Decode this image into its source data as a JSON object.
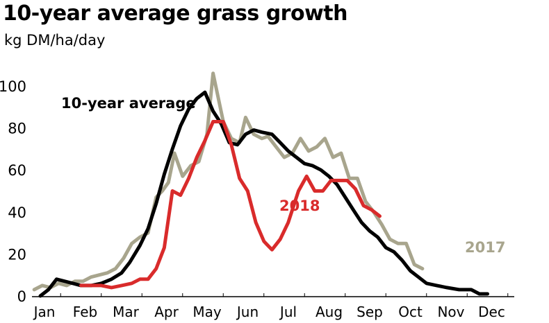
{
  "chart_data": {
    "type": "line",
    "title": "10-year average grass growth",
    "subtitle": "kg DM/ha/day",
    "xlabel": "",
    "ylabel": "",
    "months": [
      "Jan",
      "Feb",
      "Mar",
      "Apr",
      "May",
      "Jun",
      "Jul",
      "Aug",
      "Sep",
      "Oct",
      "Nov",
      "Dec"
    ],
    "xlim": [
      0,
      12
    ],
    "ylim": [
      0,
      110
    ],
    "yticks": [
      0,
      20,
      40,
      60,
      80,
      100
    ],
    "grid": false,
    "series": [
      {
        "name": "10-year average",
        "color": "#000000",
        "points": [
          [
            0.0,
            0
          ],
          [
            0.2,
            3
          ],
          [
            0.4,
            8
          ],
          [
            0.6,
            7
          ],
          [
            0.8,
            6
          ],
          [
            1.0,
            5
          ],
          [
            1.25,
            5
          ],
          [
            1.5,
            6
          ],
          [
            1.75,
            8
          ],
          [
            2.0,
            11
          ],
          [
            2.2,
            16
          ],
          [
            2.45,
            24
          ],
          [
            2.65,
            32
          ],
          [
            2.85,
            44
          ],
          [
            3.05,
            58
          ],
          [
            3.25,
            70
          ],
          [
            3.45,
            81
          ],
          [
            3.65,
            89
          ],
          [
            3.85,
            94
          ],
          [
            4.05,
            97
          ],
          [
            4.25,
            88
          ],
          [
            4.45,
            82
          ],
          [
            4.65,
            73
          ],
          [
            4.85,
            72
          ],
          [
            5.05,
            77
          ],
          [
            5.25,
            79
          ],
          [
            5.45,
            78
          ],
          [
            5.7,
            77
          ],
          [
            5.9,
            73
          ],
          [
            6.1,
            69
          ],
          [
            6.3,
            66
          ],
          [
            6.5,
            63
          ],
          [
            6.7,
            62
          ],
          [
            6.9,
            60
          ],
          [
            7.1,
            57
          ],
          [
            7.3,
            53
          ],
          [
            7.5,
            47
          ],
          [
            7.7,
            41
          ],
          [
            7.9,
            35
          ],
          [
            8.1,
            31
          ],
          [
            8.3,
            28
          ],
          [
            8.5,
            23
          ],
          [
            8.7,
            21
          ],
          [
            8.9,
            17
          ],
          [
            9.1,
            12
          ],
          [
            9.3,
            9
          ],
          [
            9.5,
            6
          ],
          [
            9.75,
            5
          ],
          [
            10.0,
            4
          ],
          [
            10.3,
            3
          ],
          [
            10.6,
            3
          ],
          [
            10.8,
            1
          ],
          [
            11.0,
            1
          ]
        ]
      },
      {
        "name": "2017",
        "color": "#a8a58d",
        "points": [
          [
            -0.15,
            3
          ],
          [
            0.05,
            5
          ],
          [
            0.25,
            4
          ],
          [
            0.45,
            6
          ],
          [
            0.65,
            5
          ],
          [
            0.85,
            7
          ],
          [
            1.05,
            7
          ],
          [
            1.25,
            9
          ],
          [
            1.45,
            10
          ],
          [
            1.65,
            11
          ],
          [
            1.85,
            13
          ],
          [
            2.05,
            18
          ],
          [
            2.25,
            25
          ],
          [
            2.45,
            28
          ],
          [
            2.65,
            30
          ],
          [
            2.85,
            47
          ],
          [
            3.0,
            50
          ],
          [
            3.15,
            54
          ],
          [
            3.3,
            68
          ],
          [
            3.5,
            57
          ],
          [
            3.7,
            62
          ],
          [
            3.9,
            64
          ],
          [
            4.1,
            77
          ],
          [
            4.25,
            106
          ],
          [
            4.5,
            83
          ],
          [
            4.7,
            75
          ],
          [
            4.9,
            73
          ],
          [
            5.05,
            85
          ],
          [
            5.25,
            77
          ],
          [
            5.45,
            75
          ],
          [
            5.6,
            76
          ],
          [
            5.8,
            71
          ],
          [
            6.0,
            66
          ],
          [
            6.2,
            68
          ],
          [
            6.4,
            75
          ],
          [
            6.6,
            69
          ],
          [
            6.8,
            71
          ],
          [
            7.0,
            75
          ],
          [
            7.2,
            66
          ],
          [
            7.4,
            68
          ],
          [
            7.6,
            56
          ],
          [
            7.8,
            56
          ],
          [
            8.0,
            45
          ],
          [
            8.2,
            40
          ],
          [
            8.4,
            34
          ],
          [
            8.6,
            27
          ],
          [
            8.8,
            25
          ],
          [
            9.0,
            25
          ],
          [
            9.2,
            15
          ],
          [
            9.4,
            13
          ]
        ]
      },
      {
        "name": "2018",
        "color": "#d92b2b",
        "points": [
          [
            1.0,
            5
          ],
          [
            1.25,
            5
          ],
          [
            1.5,
            5
          ],
          [
            1.75,
            4
          ],
          [
            2.0,
            5
          ],
          [
            2.25,
            6
          ],
          [
            2.45,
            8
          ],
          [
            2.65,
            8
          ],
          [
            2.85,
            13
          ],
          [
            3.05,
            23
          ],
          [
            3.25,
            50
          ],
          [
            3.45,
            48
          ],
          [
            3.65,
            56
          ],
          [
            3.85,
            66
          ],
          [
            4.05,
            74
          ],
          [
            4.25,
            83
          ],
          [
            4.5,
            83
          ],
          [
            4.7,
            72
          ],
          [
            4.9,
            56
          ],
          [
            5.1,
            50
          ],
          [
            5.3,
            35
          ],
          [
            5.5,
            26
          ],
          [
            5.7,
            22
          ],
          [
            5.9,
            27
          ],
          [
            6.1,
            35
          ],
          [
            6.35,
            50
          ],
          [
            6.55,
            57
          ],
          [
            6.75,
            50
          ],
          [
            6.95,
            50
          ],
          [
            7.15,
            55
          ],
          [
            7.35,
            55
          ],
          [
            7.55,
            55
          ],
          [
            7.75,
            51
          ],
          [
            7.95,
            43
          ],
          [
            8.15,
            41
          ],
          [
            8.35,
            38
          ]
        ]
      }
    ],
    "annotations": [
      {
        "text": "10-year average",
        "series": "10-year average"
      },
      {
        "text": "2018",
        "series": "2018"
      },
      {
        "text": "2017",
        "series": "2017"
      }
    ]
  }
}
